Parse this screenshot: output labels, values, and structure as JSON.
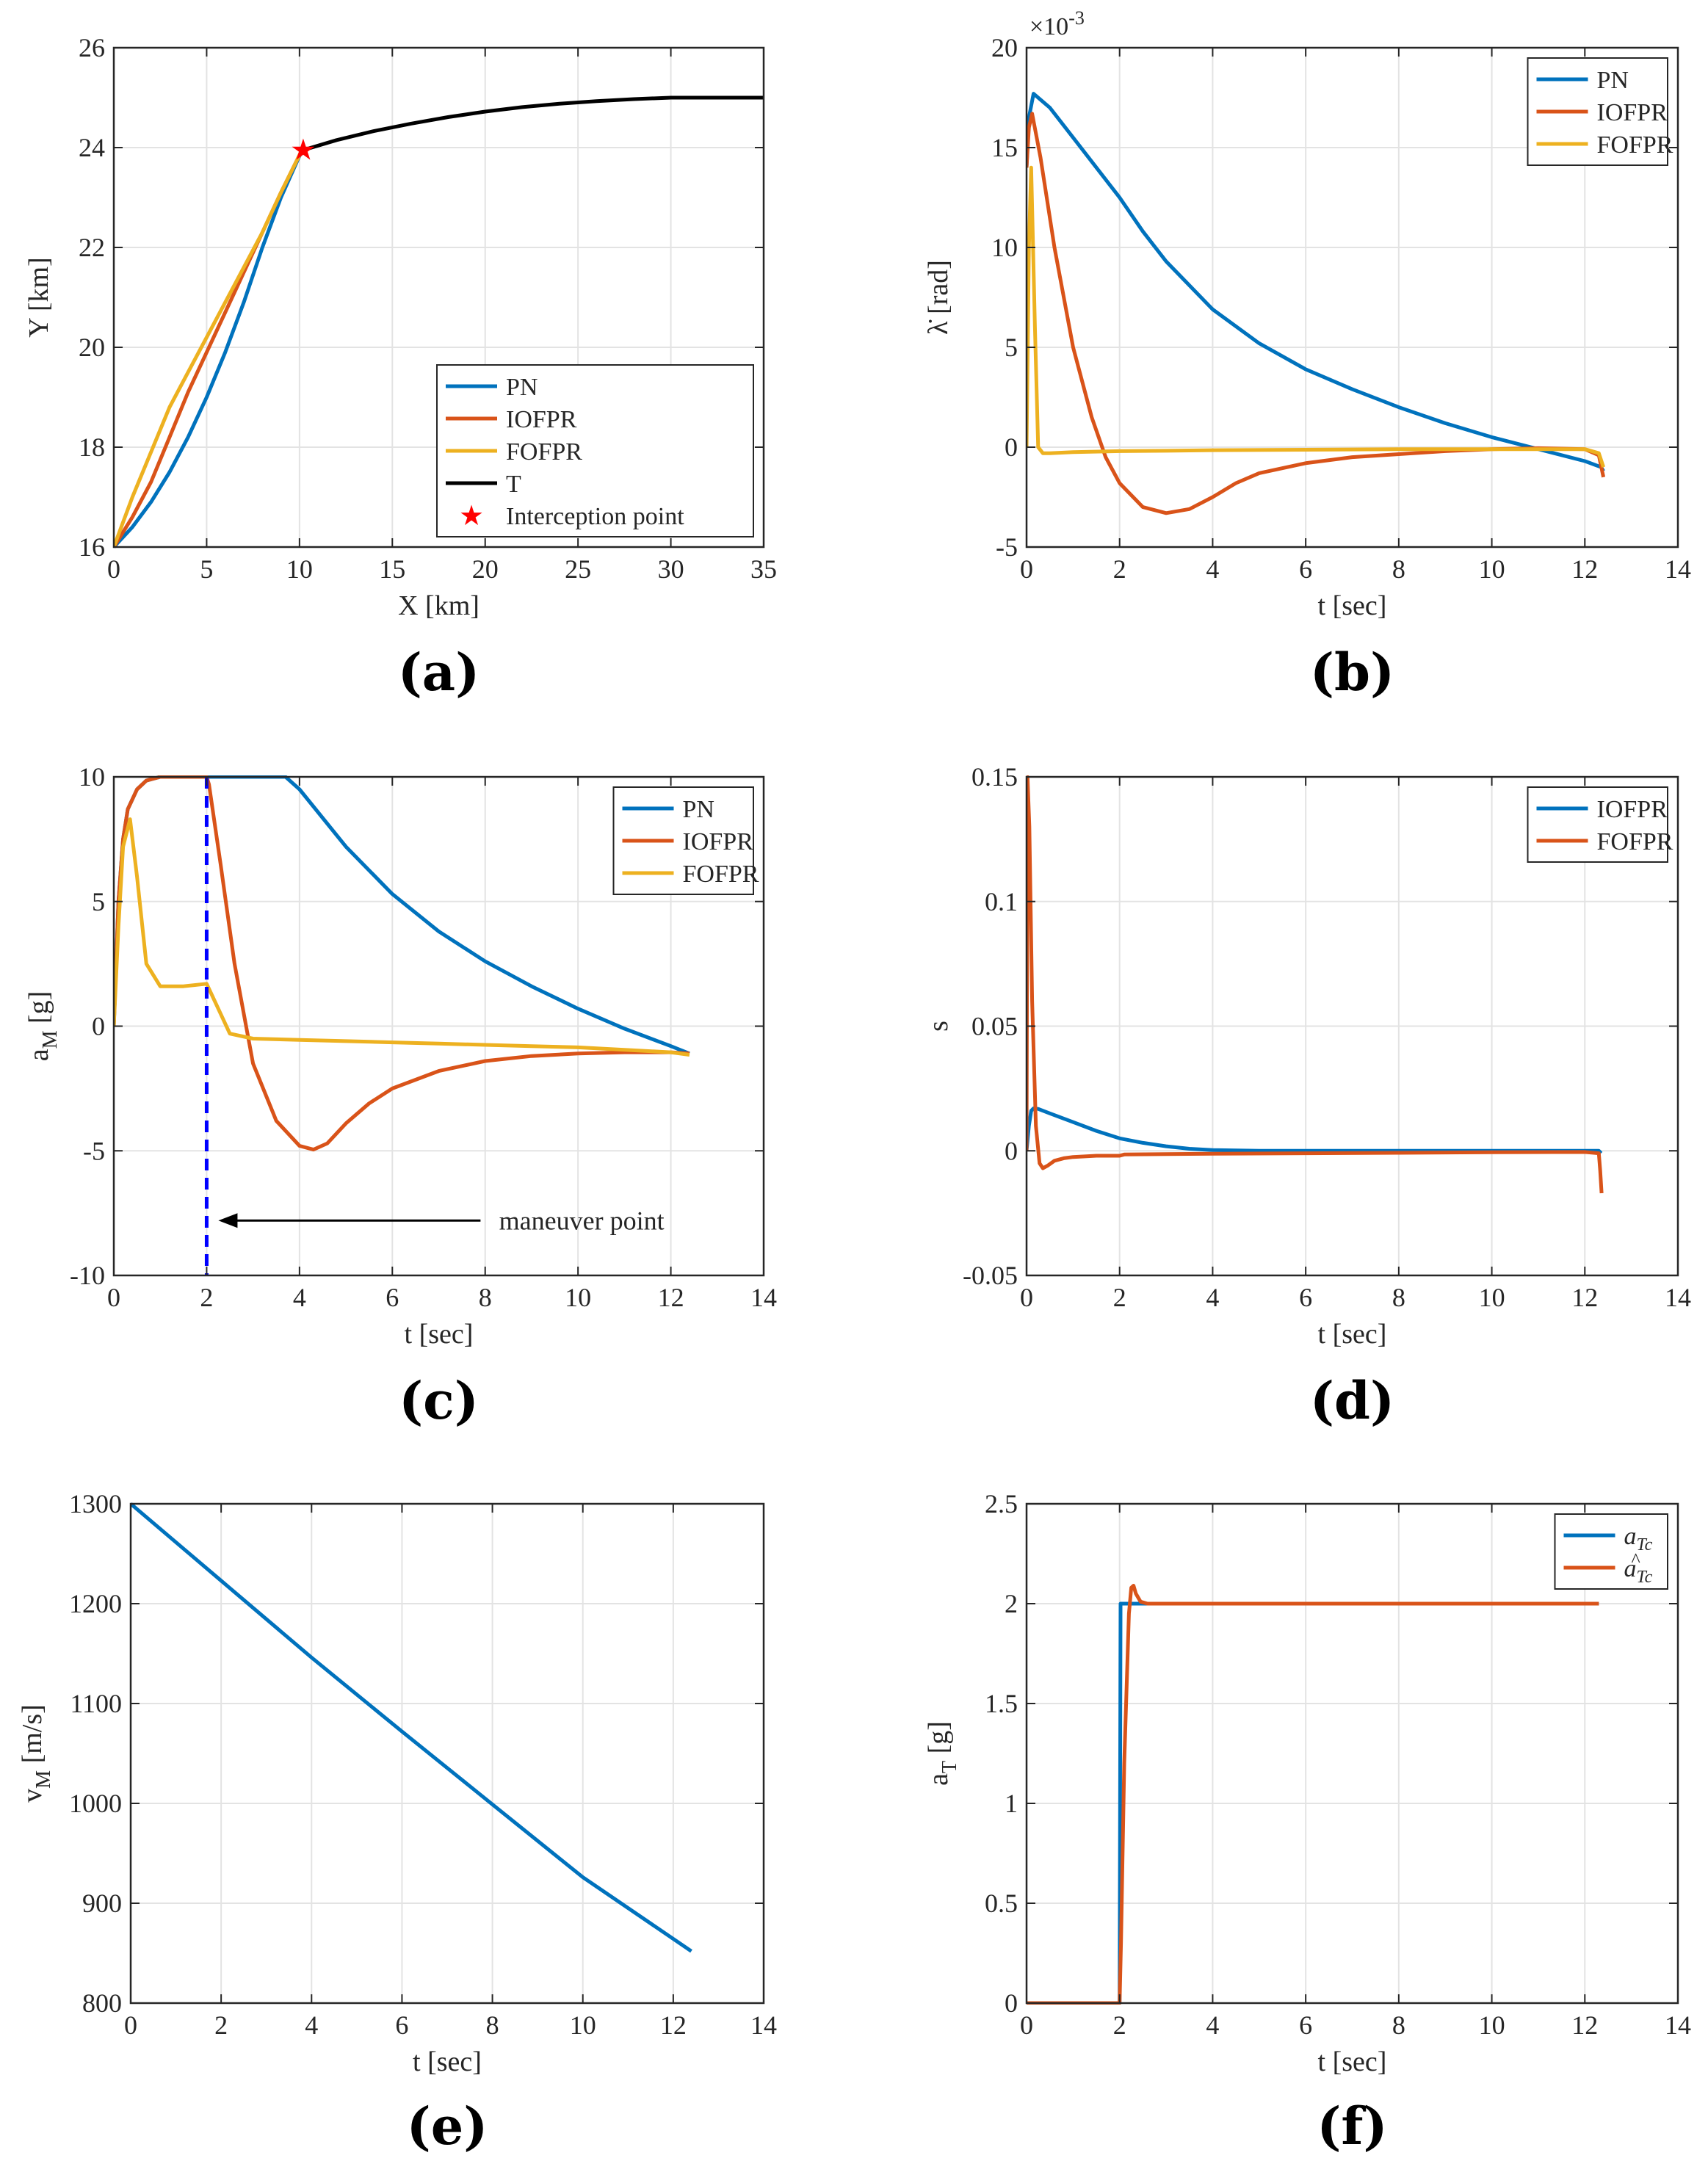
{
  "colors": {
    "blue": "#0072BD",
    "orange": "#D95319",
    "yellow": "#EDB120",
    "black": "#000000",
    "red": "#FF0000",
    "dashed": "#0000FF",
    "grid": "#E3E3E3",
    "axis": "#262626"
  },
  "chart_data": [
    {
      "panel": "(a)",
      "type": "line",
      "xlabel": "X [km]",
      "ylabel": "Y [km]",
      "xlim": [
        0,
        35
      ],
      "ylim": [
        16,
        26
      ],
      "xticks": [
        "0",
        "5",
        "10",
        "15",
        "20",
        "25",
        "30",
        "35"
      ],
      "yticks": [
        "16",
        "18",
        "20",
        "22",
        "24",
        "26"
      ],
      "legend_position": "bottom-right",
      "series": [
        {
          "name": "PN",
          "color": "#0072BD",
          "x": [
            0,
            1,
            2,
            3,
            4,
            5,
            6,
            7,
            8,
            9,
            10.2
          ],
          "y": [
            16,
            16.4,
            16.9,
            17.5,
            18.2,
            19.0,
            19.9,
            20.9,
            22.0,
            23.0,
            24.0
          ]
        },
        {
          "name": "IOFPR",
          "color": "#D95319",
          "x": [
            0,
            1,
            2,
            3,
            4,
            5,
            6,
            7,
            8,
            9,
            10.2
          ],
          "y": [
            16,
            16.6,
            17.3,
            18.2,
            19.1,
            19.9,
            20.7,
            21.5,
            22.3,
            23.1,
            24.0
          ]
        },
        {
          "name": "FOFPR",
          "color": "#EDB120",
          "x": [
            0,
            1,
            2,
            3,
            4,
            5,
            6,
            7,
            8,
            9,
            10.2
          ],
          "y": [
            16,
            17.0,
            17.9,
            18.8,
            19.5,
            20.2,
            20.9,
            21.6,
            22.3,
            23.1,
            24.0
          ]
        },
        {
          "name": "T",
          "color": "#000000",
          "x": [
            10.2,
            12,
            14,
            16,
            18,
            20,
            22,
            24,
            26,
            28,
            30,
            32,
            35
          ],
          "y": [
            23.95,
            24.15,
            24.33,
            24.48,
            24.61,
            24.72,
            24.81,
            24.88,
            24.93,
            24.97,
            25.0,
            25.0,
            25.0
          ]
        }
      ],
      "markers": [
        {
          "name": "Interception point",
          "x": 10.2,
          "y": 23.95,
          "color": "#FF0000",
          "symbol": "★"
        }
      ]
    },
    {
      "panel": "(b)",
      "type": "line",
      "xlabel": "t [sec]",
      "ylabel": "λ̇ [rad]",
      "exponent_label": "×10",
      "exponent_power": "-3",
      "xlim": [
        0,
        14
      ],
      "ylim": [
        -5,
        20
      ],
      "xticks": [
        "0",
        "2",
        "4",
        "6",
        "8",
        "10",
        "12",
        "14"
      ],
      "yticks": [
        "-5",
        "0",
        "5",
        "10",
        "15",
        "20"
      ],
      "legend_position": "top-right",
      "series": [
        {
          "name": "PN",
          "color": "#0072BD",
          "x": [
            0,
            0.05,
            0.15,
            0.5,
            1,
            2,
            2.5,
            3,
            4,
            5,
            6,
            7,
            8,
            9,
            10,
            11,
            12,
            12.35,
            12.4
          ],
          "y": [
            14,
            16.5,
            17.7,
            17.0,
            15.5,
            12.5,
            10.8,
            9.3,
            6.9,
            5.2,
            3.9,
            2.9,
            2.0,
            1.2,
            0.5,
            -0.1,
            -0.7,
            -1.0,
            -1.2
          ]
        },
        {
          "name": "IOFPR",
          "color": "#D95319",
          "x": [
            0,
            0.05,
            0.12,
            0.3,
            0.6,
            1,
            1.4,
            1.7,
            2,
            2.5,
            3,
            3.5,
            4,
            4.5,
            5,
            6,
            7,
            8,
            9,
            10,
            11,
            12,
            12.3,
            12.4
          ],
          "y": [
            14,
            16,
            16.7,
            14.5,
            10,
            5,
            1.5,
            -0.5,
            -1.8,
            -3,
            -3.3,
            -3.1,
            -2.5,
            -1.8,
            -1.3,
            -0.8,
            -0.5,
            -0.35,
            -0.2,
            -0.1,
            -0.05,
            -0.1,
            -0.4,
            -1.5
          ]
        },
        {
          "name": "FOFPR",
          "color": "#EDB120",
          "x": [
            0,
            0.05,
            0.1,
            0.18,
            0.25,
            0.35,
            0.5,
            1,
            2,
            3,
            4,
            6,
            8,
            10,
            12,
            12.3,
            12.4
          ],
          "y": [
            0,
            10,
            14,
            6,
            0,
            -0.3,
            -0.3,
            -0.25,
            -0.2,
            -0.18,
            -0.15,
            -0.13,
            -0.1,
            -0.1,
            -0.1,
            -0.3,
            -1.0
          ]
        }
      ]
    },
    {
      "panel": "(c)",
      "type": "line",
      "xlabel": "t [sec]",
      "ylabel": "a",
      "ylabel_sub": "M",
      "ylabel_unit": "[g]",
      "xlim": [
        0,
        14
      ],
      "ylim": [
        -10,
        10
      ],
      "xticks": [
        "0",
        "2",
        "4",
        "6",
        "8",
        "10",
        "12",
        "14"
      ],
      "yticks": [
        "-10",
        "-5",
        "0",
        "5",
        "10"
      ],
      "legend_position": "top-right",
      "annotation": "maneuver point",
      "maneuver_time": 2,
      "series": [
        {
          "name": "PN",
          "color": "#0072BD",
          "x": [
            0,
            0.1,
            0.2,
            0.3,
            0.5,
            0.7,
            1,
            1.5,
            2,
            3,
            3.7,
            4,
            5,
            6,
            7,
            8,
            9,
            10,
            11,
            12,
            12.4
          ],
          "y": [
            0,
            5,
            7.5,
            8.7,
            9.5,
            9.85,
            10,
            10,
            10,
            10,
            10,
            9.5,
            7.2,
            5.3,
            3.8,
            2.6,
            1.6,
            0.7,
            -0.1,
            -0.8,
            -1.1
          ]
        },
        {
          "name": "IOFPR",
          "color": "#D95319",
          "x": [
            0,
            0.1,
            0.2,
            0.3,
            0.5,
            0.7,
            1,
            1.5,
            2,
            2.05,
            2.3,
            2.6,
            3,
            3.5,
            4,
            4.3,
            4.6,
            5,
            5.5,
            6,
            7,
            8,
            9,
            10,
            11,
            12,
            12.4
          ],
          "y": [
            0,
            5,
            7.5,
            8.7,
            9.5,
            9.85,
            10,
            10,
            10,
            9.7,
            6.5,
            2.5,
            -1.5,
            -3.8,
            -4.8,
            -4.95,
            -4.7,
            -3.9,
            -3.1,
            -2.5,
            -1.8,
            -1.4,
            -1.2,
            -1.1,
            -1.05,
            -1.05,
            -1.1
          ]
        },
        {
          "name": "FOFPR",
          "color": "#EDB120",
          "x": [
            0,
            0.1,
            0.2,
            0.35,
            0.5,
            0.7,
            1,
            1.5,
            2,
            2.1,
            2.3,
            2.5,
            3,
            4,
            5,
            6,
            7,
            8,
            9,
            10,
            11,
            12,
            12.4
          ],
          "y": [
            0,
            4,
            7.2,
            8.3,
            6,
            2.5,
            1.6,
            1.6,
            1.7,
            1.3,
            0.5,
            -0.3,
            -0.5,
            -0.55,
            -0.6,
            -0.65,
            -0.7,
            -0.75,
            -0.8,
            -0.85,
            -0.95,
            -1.05,
            -1.15
          ]
        }
      ]
    },
    {
      "panel": "(d)",
      "type": "line",
      "xlabel": "t [sec]",
      "ylabel": "s",
      "xlim": [
        0,
        14
      ],
      "ylim": [
        -0.05,
        0.15
      ],
      "xticks": [
        "0",
        "2",
        "4",
        "6",
        "8",
        "10",
        "12",
        "14"
      ],
      "yticks": [
        "-0.05",
        "0",
        "0.05",
        "0.1",
        "0.15"
      ],
      "legend_position": "top-right",
      "series": [
        {
          "name": "IOFPR",
          "color": "#0072BD",
          "x": [
            0,
            0.05,
            0.1,
            0.15,
            0.25,
            0.5,
            1,
            1.5,
            2,
            2.5,
            3,
            3.5,
            4,
            5,
            6,
            8,
            10,
            12,
            12.3,
            12.35
          ],
          "y": [
            0,
            0.01,
            0.016,
            0.017,
            0.0168,
            0.015,
            0.0115,
            0.008,
            0.005,
            0.0032,
            0.0018,
            0.0008,
            0.0003,
            0,
            0,
            0,
            0,
            0,
            0,
            -0.001
          ]
        },
        {
          "name": "FOFPR",
          "color": "#D95319",
          "x": [
            0,
            0.02,
            0.06,
            0.12,
            0.2,
            0.28,
            0.35,
            0.45,
            0.6,
            0.8,
            1,
            1.5,
            2,
            2.1,
            3,
            4,
            6,
            8,
            10,
            12,
            12.3,
            12.33,
            12.36
          ],
          "y": [
            0,
            0.15,
            0.13,
            0.06,
            0.01,
            -0.005,
            -0.007,
            -0.006,
            -0.004,
            -0.003,
            -0.0025,
            -0.002,
            -0.002,
            -0.0015,
            -0.0013,
            -0.0012,
            -0.001,
            -0.0008,
            -0.0006,
            -0.0005,
            -0.001,
            -0.008,
            -0.017
          ]
        }
      ]
    },
    {
      "panel": "(e)",
      "type": "line",
      "xlabel": "t [sec]",
      "ylabel": "v",
      "ylabel_sub": "M",
      "ylabel_unit": "[m/s]",
      "xlim": [
        0,
        14
      ],
      "ylim": [
        800,
        1300
      ],
      "xticks": [
        "0",
        "2",
        "4",
        "6",
        "8",
        "10",
        "12",
        "14"
      ],
      "yticks": [
        "800",
        "900",
        "1000",
        "1100",
        "1200",
        "1300"
      ],
      "series": [
        {
          "name": "v_M",
          "color": "#0072BD",
          "x": [
            0,
            2,
            4,
            6,
            8,
            10,
            12.4
          ],
          "y": [
            1300,
            1223,
            1146,
            1072,
            999,
            926,
            852
          ]
        }
      ]
    },
    {
      "panel": "(f)",
      "type": "line",
      "xlabel": "t [sec]",
      "ylabel": "a",
      "ylabel_sub": "T",
      "ylabel_unit": "[g]",
      "xlim": [
        0,
        14
      ],
      "ylim": [
        0,
        2.5
      ],
      "xticks": [
        "0",
        "2",
        "4",
        "6",
        "8",
        "10",
        "12",
        "14"
      ],
      "yticks": [
        "0",
        "0.5",
        "1",
        "1.5",
        "2",
        "2.5"
      ],
      "legend_position": "top-right",
      "series": [
        {
          "name": "a",
          "sub": "Tc",
          "hat": false,
          "color": "#0072BD",
          "x": [
            0,
            2,
            2.02,
            2.5,
            12.3
          ],
          "y": [
            0,
            0,
            2,
            2,
            2
          ]
        },
        {
          "name": "a",
          "sub": "Tc",
          "hat": true,
          "color": "#D95319",
          "x": [
            0,
            2,
            2.03,
            2.1,
            2.2,
            2.25,
            2.3,
            2.35,
            2.45,
            2.6,
            3,
            12.3
          ],
          "y": [
            0,
            0,
            0.3,
            1.2,
            1.95,
            2.08,
            2.09,
            2.05,
            2.01,
            2.0,
            2.0,
            2.0
          ]
        }
      ]
    }
  ]
}
